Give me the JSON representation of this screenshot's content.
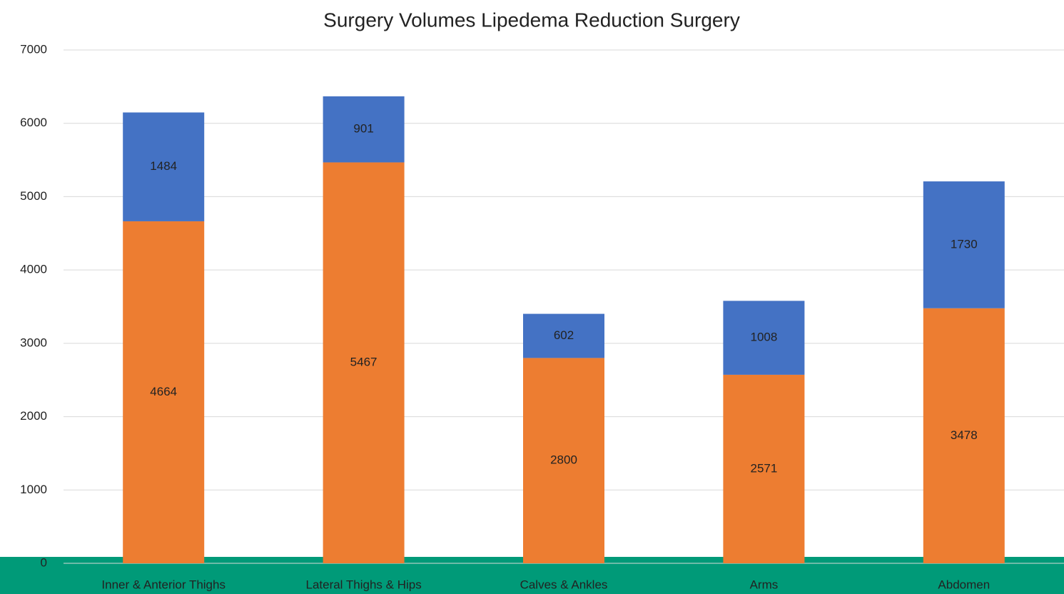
{
  "chart_data": {
    "type": "stacked_bar",
    "title": "Surgery Volumes Lipedema Reduction Surgery",
    "categories": [
      "Inner & Anterior Thighs",
      "Lateral Thighs & Hips",
      "Calves & Ankles",
      "Arms",
      "Abdomen"
    ],
    "series": [
      {
        "color": "#ed7d31",
        "values": [
          4664,
          5467,
          2800,
          2571,
          3478
        ]
      },
      {
        "color": "#4472c4",
        "values": [
          1484,
          901,
          602,
          1008,
          1730
        ]
      }
    ],
    "ylim": [
      0,
      7000
    ],
    "yticks": [
      0,
      1000,
      2000,
      3000,
      4000,
      5000,
      6000,
      7000
    ],
    "grid": true
  }
}
